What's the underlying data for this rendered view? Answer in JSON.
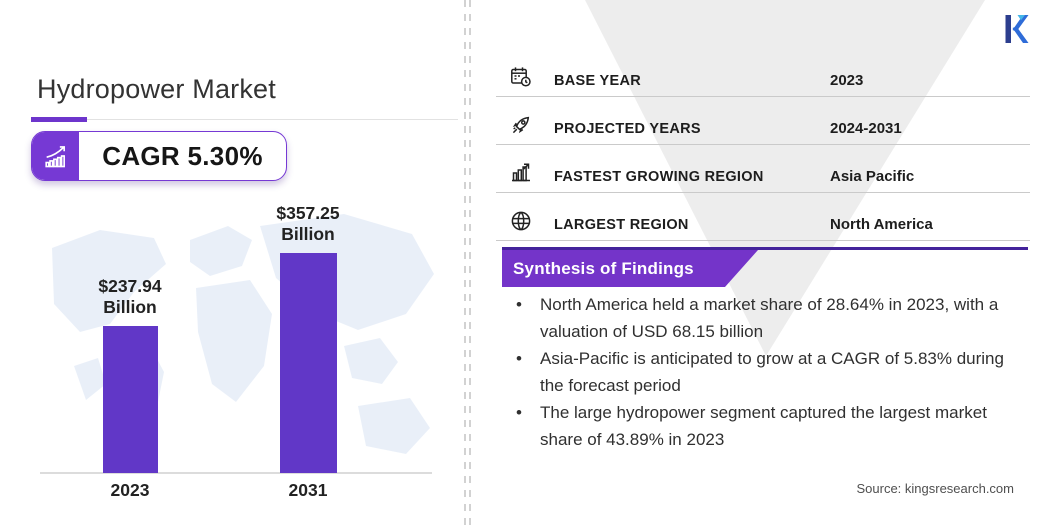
{
  "header": {
    "title": "Hydropower Market",
    "cagr_badge": "CAGR 5.30%"
  },
  "chart_data": {
    "type": "bar",
    "title": "Hydropower Market",
    "categories": [
      "2023",
      "2031"
    ],
    "values": [
      237.94,
      357.25
    ],
    "unit": "USD Billion",
    "value_labels": [
      [
        "$237.94",
        "Billion"
      ],
      [
        "$357.25",
        "Billion"
      ]
    ],
    "ylim": [
      0,
      357.25
    ],
    "grid": false,
    "legend": false,
    "bar_color": "#6137c7"
  },
  "facts": {
    "rows": [
      {
        "icon": "calendar-clock-icon",
        "label": "BASE YEAR",
        "value": "2023"
      },
      {
        "icon": "rocket-icon",
        "label": "PROJECTED YEARS",
        "value": "2024-2031"
      },
      {
        "icon": "growth-region-icon",
        "label": "FASTEST GROWING REGION",
        "value": "Asia Pacific"
      },
      {
        "icon": "globe-icon",
        "label": "LARGEST REGION",
        "value": "North America"
      }
    ]
  },
  "findings": {
    "title": "Synthesis of Findings",
    "bullets": [
      "North America held a market share of 28.64% in 2023, with a valuation of USD 68.15 billion",
      "Asia-Pacific is anticipated to grow at a CAGR of 5.83% during the forecast period",
      "The large hydropower segment captured the largest market share of 43.89% in 2023"
    ]
  },
  "footer": {
    "source": "Source: kingsresearch.com"
  },
  "brand": {
    "logo_letter": "K"
  },
  "colors": {
    "accent_purple": "#7639d4",
    "bar_purple": "#6137c7",
    "banner_purple": "#7434c9",
    "dark_rule_purple": "#44239b",
    "triangle_gray": "#ededed",
    "map_blue": "#dce6f5"
  }
}
